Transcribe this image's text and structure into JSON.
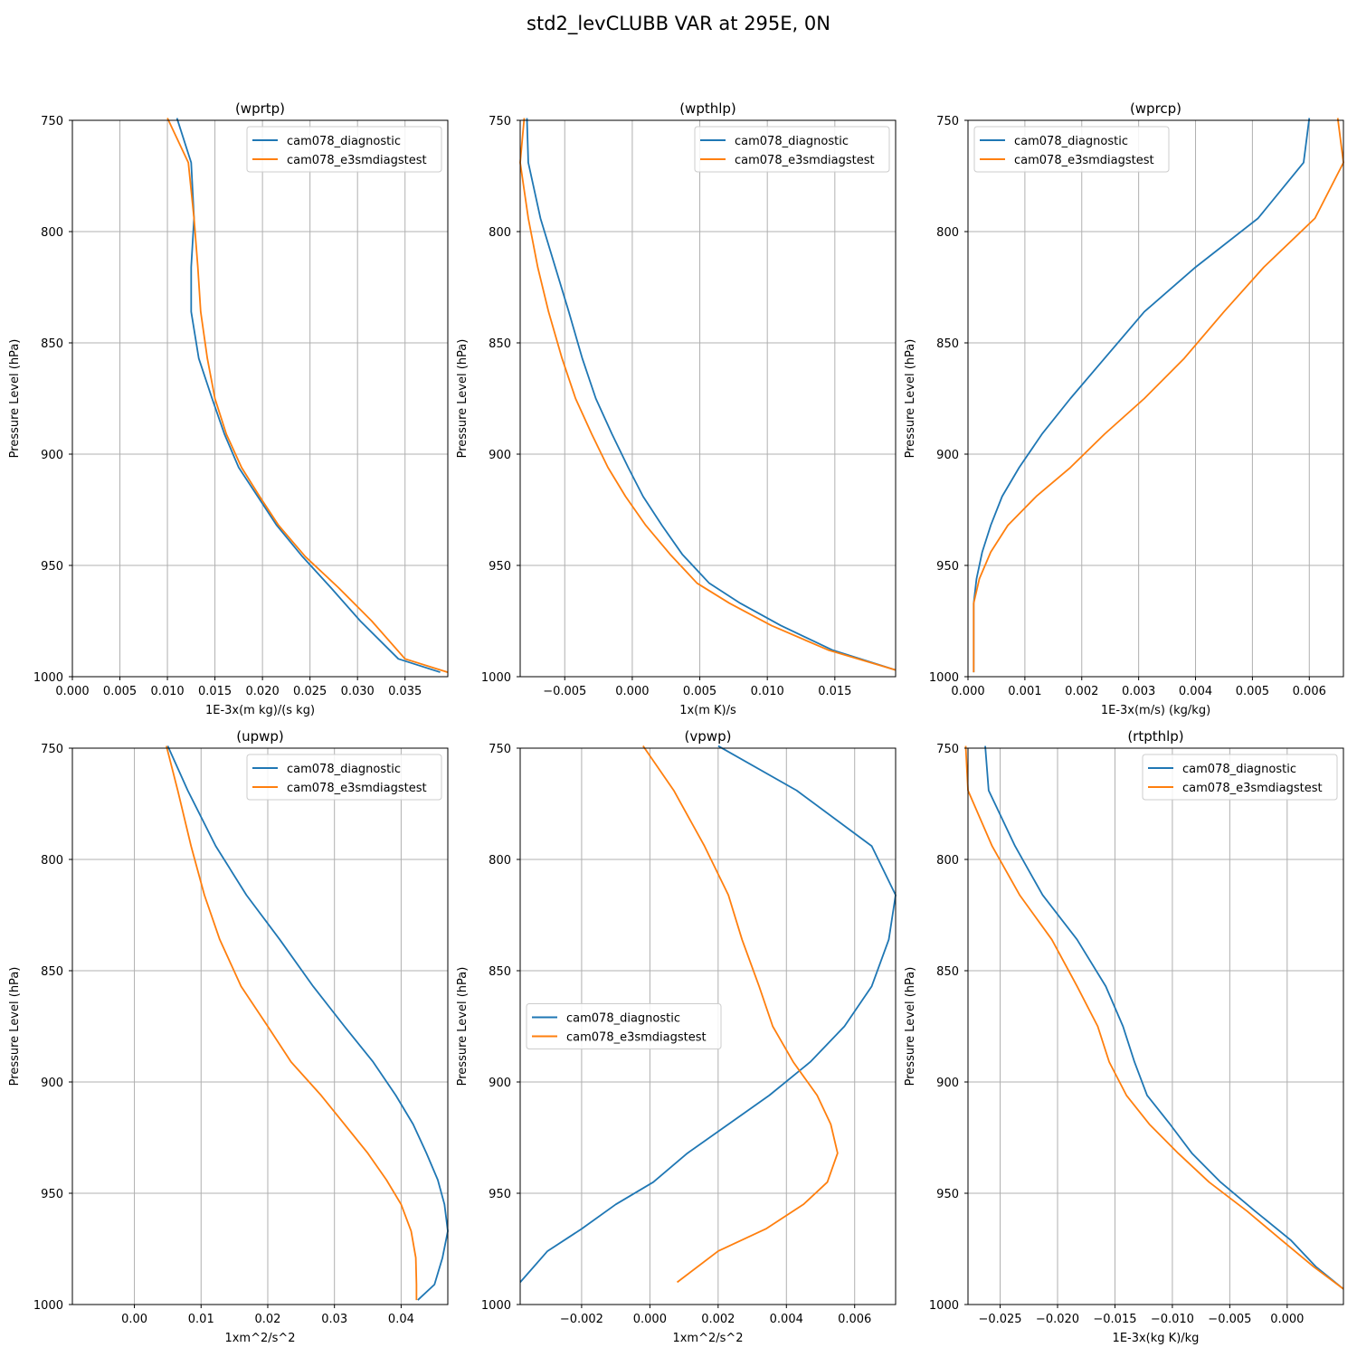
{
  "suptitle": "std2_levCLUBB VAR at 295E, 0N",
  "colors": {
    "cam078_diagnostic": "#1f77b4",
    "cam078_e3smdiagstest": "#ff7f0e"
  },
  "chart_data": [
    {
      "type": "line",
      "title": "(wprtp)",
      "xlabel": "1E-3x(m kg)/(s kg)",
      "ylabel": "Pressure Level (hPa)",
      "xlim": [
        0.0,
        0.0395
      ],
      "ylim": [
        1000,
        750
      ],
      "xticks": [
        0.0,
        0.005,
        0.01,
        0.015,
        0.02,
        0.025,
        0.03,
        0.035
      ],
      "xtick_labels": [
        "0.000",
        "0.005",
        "0.010",
        "0.015",
        "0.020",
        "0.025",
        "0.030",
        "0.035"
      ],
      "yticks": [
        750,
        800,
        850,
        900,
        950,
        1000
      ],
      "ytick_labels": [
        "750",
        "800",
        "850",
        "900",
        "950",
        "1000"
      ],
      "grid": true,
      "legend_position": "upper-right",
      "series": [
        {
          "name": "cam078_diagnostic",
          "x": [
            0.011,
            0.0125,
            0.0128,
            0.0125,
            0.0125,
            0.0133,
            0.0147,
            0.016,
            0.0175,
            0.0195,
            0.0215,
            0.0242,
            0.0272,
            0.0303,
            0.0343,
            0.0387
          ],
          "y": [
            749,
            769,
            794,
            816,
            836,
            857,
            875,
            891,
            906,
            919,
            932,
            946,
            960,
            975,
            992,
            998
          ]
        },
        {
          "name": "cam078_e3smdiagstest",
          "x": [
            0.01,
            0.0122,
            0.0128,
            0.0132,
            0.0135,
            0.0142,
            0.015,
            0.0162,
            0.0178,
            0.0197,
            0.0217,
            0.0245,
            0.028,
            0.0315,
            0.035,
            0.0395
          ],
          "y": [
            749,
            769,
            794,
            816,
            836,
            857,
            875,
            891,
            906,
            919,
            932,
            946,
            960,
            975,
            992,
            998
          ]
        }
      ]
    },
    {
      "type": "line",
      "title": "(wpthlp)",
      "xlabel": "1x(m K)/s",
      "ylabel": "Pressure Level (hPa)",
      "xlim": [
        -0.0083,
        0.0195
      ],
      "ylim": [
        1000,
        750
      ],
      "xticks": [
        -0.005,
        0.0,
        0.005,
        0.01,
        0.015
      ],
      "xtick_labels": [
        "−0.005",
        "0.000",
        "0.005",
        "0.010",
        "0.015"
      ],
      "yticks": [
        750,
        800,
        850,
        900,
        950,
        1000
      ],
      "ytick_labels": [
        "750",
        "800",
        "850",
        "900",
        "950",
        "1000"
      ],
      "grid": true,
      "legend_position": "upper-right",
      "series": [
        {
          "name": "cam078_diagnostic",
          "x": [
            -0.0078,
            -0.0077,
            -0.0068,
            -0.0057,
            -0.0047,
            -0.0037,
            -0.0027,
            -0.0015,
            -0.0003,
            0.0008,
            0.0022,
            0.0037,
            0.0057,
            0.008,
            0.011,
            0.0148,
            0.0195
          ],
          "y": [
            749,
            769,
            794,
            816,
            836,
            857,
            875,
            891,
            906,
            919,
            932,
            945,
            958,
            967,
            977,
            988,
            997
          ]
        },
        {
          "name": "cam078_e3smdiagstest",
          "x": [
            -0.008,
            -0.0083,
            -0.0077,
            -0.007,
            -0.0062,
            -0.0052,
            -0.0042,
            -0.003,
            -0.0018,
            -0.0005,
            0.001,
            0.0028,
            0.0048,
            0.0072,
            0.0103,
            0.0145,
            0.0195
          ],
          "y": [
            749,
            769,
            794,
            816,
            836,
            857,
            875,
            891,
            906,
            919,
            932,
            945,
            958,
            967,
            977,
            988,
            997
          ]
        }
      ]
    },
    {
      "type": "line",
      "title": "(wprcp)",
      "xlabel": "1E-3x(m/s) (kg/kg)",
      "ylabel": "Pressure Level (hPa)",
      "xlim": [
        0.0,
        0.0066
      ],
      "ylim": [
        1000,
        750
      ],
      "xticks": [
        0.0,
        0.001,
        0.002,
        0.003,
        0.004,
        0.005,
        0.006
      ],
      "xtick_labels": [
        "0.000",
        "0.001",
        "0.002",
        "0.003",
        "0.004",
        "0.005",
        "0.006"
      ],
      "yticks": [
        750,
        800,
        850,
        900,
        950,
        1000
      ],
      "ytick_labels": [
        "750",
        "800",
        "850",
        "900",
        "950",
        "1000"
      ],
      "grid": true,
      "legend_position": "upper-left",
      "series": [
        {
          "name": "cam078_diagnostic",
          "x": [
            0.006,
            0.0059,
            0.0051,
            0.004,
            0.0031,
            0.0024,
            0.0018,
            0.0013,
            0.0009,
            0.0006,
            0.0004,
            0.00025,
            0.00015,
            0.0001,
            0.0001,
            0.0001,
            0.0001
          ],
          "y": [
            749,
            769,
            794,
            816,
            836,
            857,
            875,
            891,
            906,
            919,
            932,
            944,
            956,
            967,
            979,
            992,
            998
          ]
        },
        {
          "name": "cam078_e3smdiagstest",
          "x": [
            0.0065,
            0.0066,
            0.0061,
            0.0052,
            0.0045,
            0.0038,
            0.0031,
            0.0024,
            0.0018,
            0.0012,
            0.0007,
            0.0004,
            0.0002,
            0.0001,
            0.0001,
            0.0001,
            0.0001
          ],
          "y": [
            749,
            769,
            794,
            816,
            836,
            857,
            875,
            891,
            906,
            919,
            932,
            944,
            956,
            967,
            979,
            992,
            998
          ]
        }
      ]
    },
    {
      "type": "line",
      "title": "(upwp)",
      "xlabel": "1xm^2/s^2",
      "ylabel": "Pressure Level (hPa)",
      "xlim": [
        -0.0093,
        0.047
      ],
      "ylim": [
        1000,
        750
      ],
      "xticks": [
        0.0,
        0.01,
        0.02,
        0.03,
        0.04
      ],
      "xtick_labels": [
        "0.00",
        "0.01",
        "0.02",
        "0.03",
        "0.04"
      ],
      "yticks": [
        750,
        800,
        850,
        900,
        950,
        1000
      ],
      "ytick_labels": [
        "750",
        "800",
        "850",
        "900",
        "950",
        "1000"
      ],
      "grid": true,
      "legend_position": "upper-right",
      "series": [
        {
          "name": "cam078_diagnostic",
          "x": [
            0.005,
            0.008,
            0.0122,
            0.0168,
            0.0218,
            0.0268,
            0.0315,
            0.0358,
            0.0392,
            0.0418,
            0.0438,
            0.0455,
            0.0465,
            0.047,
            0.0462,
            0.045,
            0.0425
          ],
          "y": [
            749,
            769,
            794,
            816,
            836,
            857,
            875,
            891,
            906,
            919,
            932,
            944,
            955,
            967,
            979,
            991,
            998
          ]
        },
        {
          "name": "cam078_e3smdiagstest",
          "x": [
            0.0048,
            0.0065,
            0.0085,
            0.0105,
            0.0128,
            0.016,
            0.02,
            0.0235,
            0.028,
            0.0315,
            0.035,
            0.0378,
            0.04,
            0.0415,
            0.0422,
            0.0423,
            0.0423
          ],
          "y": [
            749,
            769,
            794,
            816,
            836,
            857,
            875,
            891,
            906,
            919,
            932,
            944,
            955,
            967,
            979,
            991,
            998
          ]
        }
      ]
    },
    {
      "type": "line",
      "title": "(vpwp)",
      "xlabel": "1xm^2/s^2",
      "ylabel": "Pressure Level (hPa)",
      "xlim": [
        -0.0038,
        0.0072
      ],
      "ylim": [
        1000,
        750
      ],
      "xticks": [
        -0.002,
        0.0,
        0.002,
        0.004,
        0.006
      ],
      "xtick_labels": [
        "−0.002",
        "0.000",
        "0.002",
        "0.004",
        "0.006"
      ],
      "yticks": [
        750,
        800,
        850,
        900,
        950,
        1000
      ],
      "ytick_labels": [
        "750",
        "800",
        "850",
        "900",
        "950",
        "1000"
      ],
      "grid": true,
      "legend_position": "center-left",
      "series": [
        {
          "name": "cam078_diagnostic",
          "x": [
            0.002,
            0.0043,
            0.0065,
            0.0072,
            0.007,
            0.0065,
            0.0057,
            0.0047,
            0.0035,
            0.0023,
            0.0011,
            0.0001,
            -0.001,
            -0.002,
            -0.003,
            -0.0038
          ],
          "y": [
            749,
            769,
            794,
            816,
            836,
            857,
            875,
            891,
            906,
            919,
            932,
            945,
            955,
            966,
            976,
            990
          ]
        },
        {
          "name": "cam078_e3smdiagstest",
          "x": [
            -0.0002,
            0.0007,
            0.0016,
            0.0023,
            0.0027,
            0.0032,
            0.0036,
            0.0042,
            0.0049,
            0.0053,
            0.0055,
            0.0052,
            0.0045,
            0.0034,
            0.002,
            0.0008
          ],
          "y": [
            749,
            769,
            794,
            816,
            836,
            857,
            875,
            891,
            906,
            919,
            932,
            945,
            955,
            966,
            976,
            990
          ]
        }
      ]
    },
    {
      "type": "line",
      "title": "(rtpthlp)",
      "xlabel": "1E-3x(kg K)/kg",
      "ylabel": "Pressure Level (hPa)",
      "xlim": [
        -0.0278,
        0.0049
      ],
      "ylim": [
        1000,
        750
      ],
      "xticks": [
        -0.025,
        -0.02,
        -0.015,
        -0.01,
        -0.005,
        0.0
      ],
      "xtick_labels": [
        "−0.025",
        "−0.020",
        "−0.015",
        "−0.010",
        "−0.005",
        "0.000"
      ],
      "yticks": [
        750,
        800,
        850,
        900,
        950,
        1000
      ],
      "ytick_labels": [
        "750",
        "800",
        "850",
        "900",
        "950",
        "1000"
      ],
      "grid": true,
      "legend_position": "upper-right",
      "series": [
        {
          "name": "cam078_diagnostic",
          "x": [
            -0.0263,
            -0.026,
            -0.0237,
            -0.0213,
            -0.0183,
            -0.0158,
            -0.0143,
            -0.0133,
            -0.0122,
            -0.0102,
            -0.0083,
            -0.0058,
            -0.0028,
            0.0003,
            0.0025,
            0.0049
          ],
          "y": [
            749,
            769,
            794,
            816,
            836,
            857,
            875,
            891,
            906,
            919,
            932,
            945,
            958,
            971,
            983,
            993
          ]
        },
        {
          "name": "cam078_e3smdiagstest",
          "x": [
            -0.028,
            -0.0278,
            -0.0257,
            -0.0233,
            -0.0205,
            -0.0183,
            -0.0165,
            -0.0155,
            -0.014,
            -0.012,
            -0.0095,
            -0.0068,
            -0.0035,
            -0.0005,
            0.0023,
            0.0049
          ],
          "y": [
            749,
            769,
            794,
            816,
            836,
            857,
            875,
            891,
            906,
            919,
            932,
            945,
            958,
            971,
            983,
            993
          ]
        }
      ]
    }
  ]
}
